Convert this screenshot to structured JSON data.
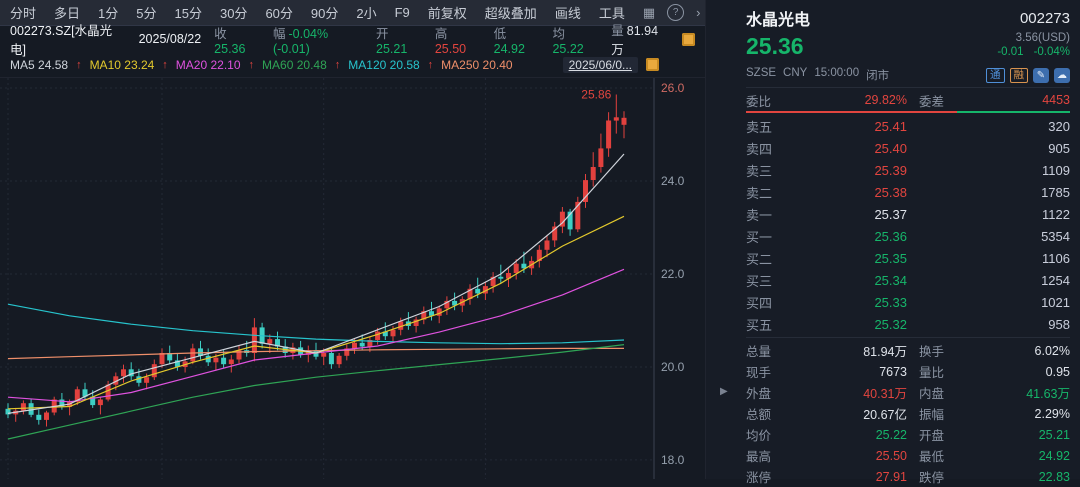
{
  "toolbar": {
    "tabs": [
      "分时",
      "多日",
      "1分",
      "5分",
      "15分",
      "30分",
      "60分",
      "90分",
      "2小",
      "F9",
      "前复权",
      "超级叠加",
      "画线",
      "工具"
    ],
    "icons": {
      "layout": "▦",
      "help": "?",
      "more": "›"
    }
  },
  "info": {
    "symbol": "002273.SZ[水晶光电]",
    "date": "2025/08/22",
    "fields": [
      {
        "label": "收",
        "value": "25.36"
      },
      {
        "label": "幅",
        "value": "-0.04%(-0.01)"
      },
      {
        "label": "开",
        "value": "25.21"
      },
      {
        "label": "高",
        "value": "25.50"
      },
      {
        "label": "低",
        "value": "24.92"
      },
      {
        "label": "均",
        "value": "25.22"
      },
      {
        "label": "量",
        "value": "81.94万"
      }
    ]
  },
  "legend": {
    "arrow": "↑",
    "items": [
      {
        "label": "MA5",
        "value": "24.58"
      },
      {
        "label": "MA10",
        "value": "23.24"
      },
      {
        "label": "MA20",
        "value": "22.10"
      },
      {
        "label": "MA60",
        "value": "20.48"
      },
      {
        "label": "MA120",
        "value": "20.58"
      },
      {
        "label": "MA250",
        "value": "20.40"
      }
    ],
    "date_box": "2025/06/0..."
  },
  "chart_data": {
    "type": "candlestick",
    "title": "002273.SZ 水晶光电 日K",
    "y_ticks": [
      26.0,
      24.0,
      22.0,
      20.0,
      18.0
    ],
    "y_range": [
      17.59,
      26.215
    ],
    "prev_close": 25.37,
    "up_color": "#e2413e",
    "down_color": "#3ecfc4",
    "high_label": "25.86",
    "high_label_index": 79,
    "v_grid_indices": [
      0,
      20,
      41,
      62
    ],
    "candles": [
      [
        19.1,
        19.22,
        18.9,
        18.98
      ],
      [
        18.98,
        19.12,
        18.82,
        19.06
      ],
      [
        19.06,
        19.28,
        18.98,
        19.22
      ],
      [
        19.22,
        19.3,
        18.92,
        18.97
      ],
      [
        18.97,
        19.08,
        18.76,
        18.86
      ],
      [
        18.86,
        19.06,
        18.72,
        19.02
      ],
      [
        19.02,
        19.36,
        18.96,
        19.3
      ],
      [
        19.3,
        19.44,
        19.08,
        19.14
      ],
      [
        19.14,
        19.3,
        18.96,
        19.25
      ],
      [
        19.25,
        19.58,
        19.18,
        19.52
      ],
      [
        19.52,
        19.66,
        19.28,
        19.36
      ],
      [
        19.36,
        19.5,
        19.12,
        19.18
      ],
      [
        19.18,
        19.36,
        18.98,
        19.3
      ],
      [
        19.3,
        19.7,
        19.26,
        19.62
      ],
      [
        19.62,
        19.88,
        19.5,
        19.8
      ],
      [
        19.8,
        20.05,
        19.66,
        19.95
      ],
      [
        19.95,
        20.1,
        19.72,
        19.8
      ],
      [
        19.8,
        19.96,
        19.58,
        19.66
      ],
      [
        19.66,
        19.86,
        19.52,
        19.78
      ],
      [
        19.78,
        20.16,
        19.72,
        20.06
      ],
      [
        20.06,
        20.4,
        19.98,
        20.3
      ],
      [
        20.3,
        20.46,
        20.06,
        20.14
      ],
      [
        20.14,
        20.3,
        19.92,
        20.0
      ],
      [
        20.0,
        20.22,
        19.88,
        20.12
      ],
      [
        20.12,
        20.5,
        20.06,
        20.4
      ],
      [
        20.4,
        20.56,
        20.16,
        20.24
      ],
      [
        20.24,
        20.4,
        20.02,
        20.1
      ],
      [
        20.1,
        20.28,
        19.92,
        20.2
      ],
      [
        20.2,
        20.36,
        19.98,
        20.06
      ],
      [
        20.06,
        20.26,
        19.88,
        20.16
      ],
      [
        20.16,
        20.46,
        20.08,
        20.36
      ],
      [
        20.36,
        20.56,
        20.22,
        20.3
      ],
      [
        20.3,
        21.05,
        20.12,
        20.85
      ],
      [
        20.85,
        20.95,
        20.4,
        20.5
      ],
      [
        20.5,
        20.7,
        20.3,
        20.6
      ],
      [
        20.6,
        20.76,
        20.36,
        20.44
      ],
      [
        20.44,
        20.6,
        20.2,
        20.3
      ],
      [
        20.3,
        20.52,
        20.16,
        20.42
      ],
      [
        20.42,
        20.56,
        20.2,
        20.26
      ],
      [
        20.26,
        20.46,
        20.1,
        20.36
      ],
      [
        20.36,
        20.52,
        20.16,
        20.22
      ],
      [
        20.22,
        20.4,
        20.04,
        20.3
      ],
      [
        20.3,
        20.42,
        19.96,
        20.06
      ],
      [
        20.06,
        20.3,
        19.98,
        20.24
      ],
      [
        20.24,
        20.48,
        20.14,
        20.4
      ],
      [
        20.4,
        20.62,
        20.28,
        20.52
      ],
      [
        20.52,
        20.7,
        20.36,
        20.44
      ],
      [
        20.44,
        20.66,
        20.32,
        20.58
      ],
      [
        20.58,
        20.84,
        20.48,
        20.76
      ],
      [
        20.76,
        20.96,
        20.58,
        20.66
      ],
      [
        20.66,
        20.88,
        20.52,
        20.8
      ],
      [
        20.8,
        21.06,
        20.68,
        20.98
      ],
      [
        20.98,
        21.18,
        20.8,
        20.88
      ],
      [
        20.88,
        21.08,
        20.74,
        21.02
      ],
      [
        21.02,
        21.3,
        20.92,
        21.2
      ],
      [
        21.2,
        21.4,
        21.0,
        21.1
      ],
      [
        21.1,
        21.32,
        20.94,
        21.26
      ],
      [
        21.26,
        21.52,
        21.12,
        21.42
      ],
      [
        21.42,
        21.6,
        21.22,
        21.32
      ],
      [
        21.32,
        21.52,
        21.18,
        21.46
      ],
      [
        21.46,
        21.78,
        21.34,
        21.68
      ],
      [
        21.68,
        21.92,
        21.48,
        21.58
      ],
      [
        21.58,
        21.84,
        21.44,
        21.74
      ],
      [
        21.74,
        22.04,
        21.6,
        21.94
      ],
      [
        21.94,
        22.2,
        21.8,
        21.9
      ],
      [
        21.9,
        22.12,
        21.72,
        22.02
      ],
      [
        22.02,
        22.32,
        21.88,
        22.22
      ],
      [
        22.22,
        22.48,
        22.02,
        22.12
      ],
      [
        22.12,
        22.38,
        21.98,
        22.28
      ],
      [
        22.28,
        22.62,
        22.14,
        22.52
      ],
      [
        22.52,
        22.84,
        22.36,
        22.72
      ],
      [
        22.72,
        23.12,
        22.58,
        23.02
      ],
      [
        23.02,
        23.44,
        22.88,
        23.34
      ],
      [
        23.34,
        23.4,
        22.82,
        22.96
      ],
      [
        22.96,
        23.66,
        22.9,
        23.55
      ],
      [
        23.55,
        24.15,
        23.42,
        24.02
      ],
      [
        24.02,
        24.62,
        23.88,
        24.3
      ],
      [
        24.3,
        25.02,
        24.18,
        24.7
      ],
      [
        24.7,
        25.48,
        24.52,
        25.3
      ],
      [
        25.3,
        25.86,
        25.02,
        25.37
      ],
      [
        25.21,
        25.5,
        24.92,
        25.36
      ]
    ],
    "ma_series": [
      {
        "name": "MA250",
        "color": "#ef8f6a",
        "indices": [
          0,
          8,
          16,
          24,
          32,
          40,
          48,
          56,
          64,
          72,
          80
        ],
        "values": [
          20.18,
          20.22,
          20.26,
          20.3,
          20.33,
          20.35,
          20.37,
          20.38,
          20.39,
          20.4,
          20.4
        ]
      },
      {
        "name": "MA120",
        "color": "#27c4cd",
        "indices": [
          0,
          8,
          16,
          24,
          32,
          40,
          48,
          56,
          64,
          72,
          80
        ],
        "values": [
          21.35,
          21.1,
          20.92,
          20.78,
          20.68,
          20.6,
          20.55,
          20.52,
          20.5,
          20.52,
          20.58
        ]
      },
      {
        "name": "MA60",
        "color": "#2fa455",
        "indices": [
          0,
          8,
          16,
          24,
          32,
          40,
          48,
          56,
          64,
          72,
          80
        ],
        "values": [
          18.45,
          18.75,
          19.05,
          19.35,
          19.6,
          19.78,
          19.92,
          20.05,
          20.18,
          20.32,
          20.48
        ]
      },
      {
        "name": "MA20",
        "color": "#df52df",
        "indices": [
          0,
          8,
          16,
          24,
          32,
          40,
          48,
          56,
          64,
          72,
          80
        ],
        "values": [
          19.35,
          19.25,
          19.45,
          19.8,
          20.15,
          20.3,
          20.45,
          20.75,
          21.1,
          21.55,
          22.1
        ]
      },
      {
        "name": "MA10",
        "color": "#e3c92d",
        "indices": [
          0,
          8,
          16,
          24,
          32,
          40,
          48,
          56,
          64,
          72,
          80
        ],
        "values": [
          19.1,
          19.15,
          19.7,
          20.1,
          20.45,
          20.3,
          20.7,
          21.15,
          21.8,
          22.6,
          23.24
        ]
      },
      {
        "name": "MA5",
        "color": "#cfd4db",
        "indices": [
          0,
          8,
          16,
          24,
          32,
          40,
          48,
          56,
          64,
          72,
          80
        ],
        "values": [
          19.0,
          19.2,
          19.85,
          20.2,
          20.55,
          20.3,
          20.8,
          21.3,
          22.0,
          23.1,
          24.58
        ]
      }
    ]
  },
  "panel": {
    "name": "水晶光电",
    "code": "002273",
    "price": "25.36",
    "price_usd": "3.56(USD)",
    "exchange": "SZSE",
    "currency": "CNY",
    "time": "15:00:00",
    "status": "闭市",
    "change": "-0.01",
    "change_pct": "-0.04%",
    "badge_tong": "通",
    "badge_rong": "融",
    "weibi_label": "委比",
    "weibi_value": "29.82%",
    "weicha_label": "委差",
    "weicha_value": "4453",
    "asks": [
      {
        "label": "卖五",
        "price": "25.41",
        "vol": "320"
      },
      {
        "label": "卖四",
        "price": "25.40",
        "vol": "905"
      },
      {
        "label": "卖三",
        "price": "25.39",
        "vol": "1109"
      },
      {
        "label": "卖二",
        "price": "25.38",
        "vol": "1785"
      },
      {
        "label": "卖一",
        "price": "25.37",
        "vol": "1122"
      }
    ],
    "bids": [
      {
        "label": "买一",
        "price": "25.36",
        "vol": "5354"
      },
      {
        "label": "买二",
        "price": "25.35",
        "vol": "1106"
      },
      {
        "label": "买三",
        "price": "25.34",
        "vol": "1254"
      },
      {
        "label": "买四",
        "price": "25.33",
        "vol": "1021"
      },
      {
        "label": "买五",
        "price": "25.32",
        "vol": "958"
      }
    ],
    "stats": [
      {
        "l1": "总量",
        "v1": "81.94万",
        "l2": "换手",
        "v2": "6.02%"
      },
      {
        "l1": "现手",
        "v1": "7673",
        "l2": "量比",
        "v2": "0.95"
      },
      {
        "l1": "外盘",
        "v1": "40.31万",
        "l2": "内盘",
        "v2": "41.63万"
      },
      {
        "l1": "总额",
        "v1": "20.67亿",
        "l2": "振幅",
        "v2": "2.29%"
      },
      {
        "l1": "均价",
        "v1": "25.22",
        "l2": "开盘",
        "v2": "25.21"
      },
      {
        "l1": "最高",
        "v1": "25.50",
        "l2": "最低",
        "v2": "24.92"
      },
      {
        "l1": "涨停",
        "v1": "27.91",
        "l2": "跌停",
        "v2": "22.83"
      }
    ],
    "icons": {
      "collapse": "▶",
      "edit": "✎",
      "cloud": "☁"
    }
  },
  "theme": {
    "up": "#e2453f",
    "down": "#16b56a",
    "accent_yellow": "#e9a93d"
  }
}
